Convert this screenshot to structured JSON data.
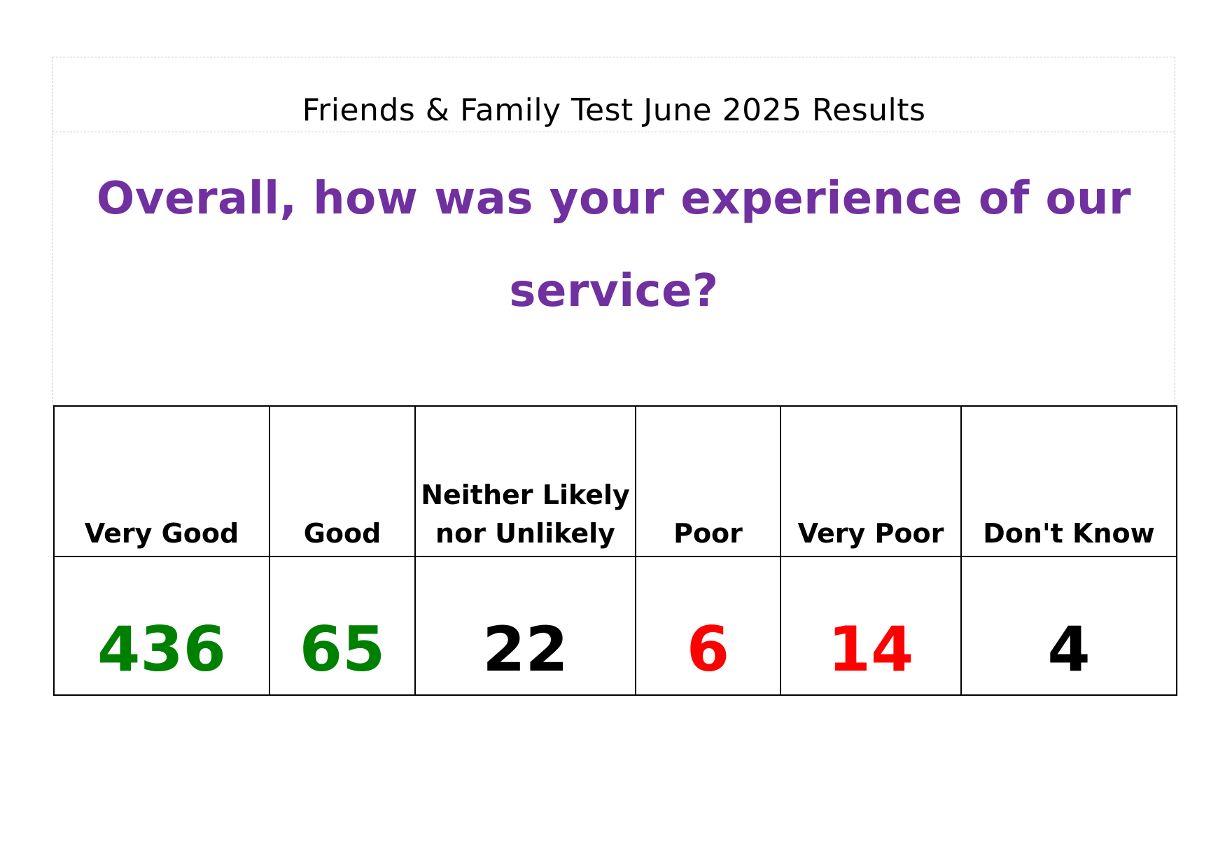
{
  "title": "Friends & Family Test June 2025 Results",
  "question": "Overall, how was your experience of our service?",
  "colors": {
    "question": "#7030a0",
    "positive": "#008000",
    "neutral": "#000000",
    "negative": "#ff0000"
  },
  "results": [
    {
      "label": "Very Good",
      "value": "436",
      "sentiment": "positive"
    },
    {
      "label": "Good",
      "value": "65",
      "sentiment": "positive"
    },
    {
      "label": "Neither Likely nor Unlikely",
      "value": "22",
      "sentiment": "neutral"
    },
    {
      "label": "Poor",
      "value": "6",
      "sentiment": "negative"
    },
    {
      "label": "Very Poor",
      "value": "14",
      "sentiment": "negative"
    },
    {
      "label": "Don't Know",
      "value": "4",
      "sentiment": "neutral"
    }
  ]
}
